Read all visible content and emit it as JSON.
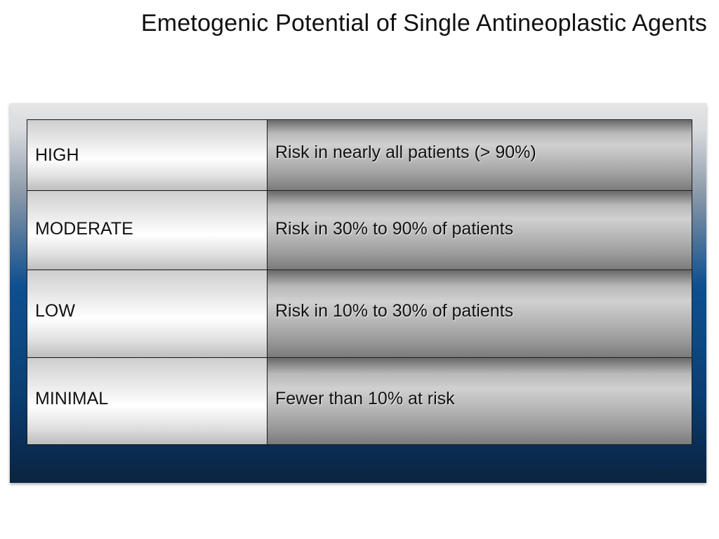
{
  "slide": {
    "title": "Emetogenic Potential of Single Antineoplastic Agents"
  },
  "table": {
    "rows": [
      {
        "level": "HIGH",
        "risk": "Risk in nearly all patients (> 90%)"
      },
      {
        "level": "MODERATE",
        "risk": "Risk in 30% to 90% of patients"
      },
      {
        "level": "LOW",
        "risk": "Risk in 10% to 30% of patients"
      },
      {
        "level": "MINIMAL",
        "risk": "Fewer than 10% at risk"
      }
    ]
  },
  "colors": {
    "panel_top": "#e6e6e6",
    "panel_mid": "#0f4f90",
    "panel_bottom": "#0b2440",
    "border": "#1a1a1a",
    "text": "#111111"
  }
}
